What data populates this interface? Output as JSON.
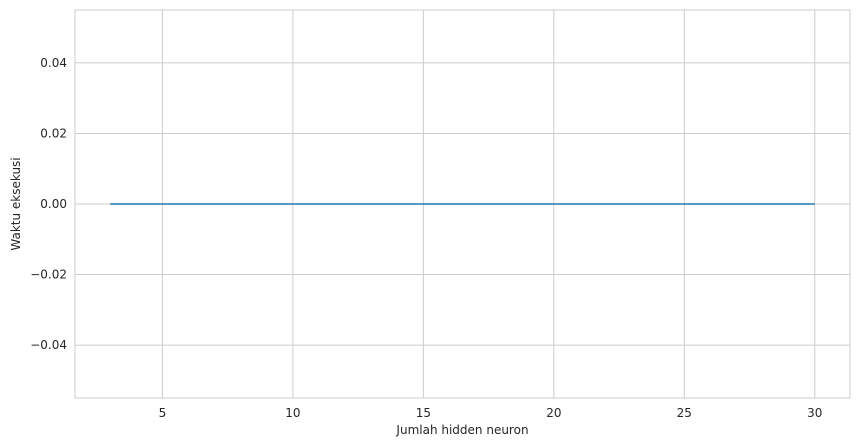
{
  "chart_data": {
    "type": "line",
    "title": "",
    "xlabel": "Jumlah hidden neuron",
    "ylabel": "Waktu eksekusi",
    "xlim": [
      1.65,
      31.35
    ],
    "ylim": [
      -0.055,
      0.055
    ],
    "xticks": [
      5,
      10,
      15,
      20,
      25,
      30
    ],
    "xtick_labels": [
      "5",
      "10",
      "15",
      "20",
      "25",
      "30"
    ],
    "yticks": [
      -0.04,
      -0.02,
      0.0,
      0.02,
      0.04
    ],
    "ytick_labels": [
      "−0.04",
      "−0.02",
      "0.00",
      "0.02",
      "0.04"
    ],
    "grid": true,
    "series": [
      {
        "color": "#1f77b4",
        "x": [
          3,
          4,
          5,
          6,
          7,
          8,
          9,
          10,
          11,
          12,
          13,
          14,
          15,
          16,
          17,
          18,
          19,
          20,
          21,
          22,
          23,
          24,
          25,
          26,
          27,
          28,
          29,
          30
        ],
        "y": [
          0,
          0,
          0,
          0,
          0,
          0,
          0,
          0,
          0,
          0,
          0,
          0,
          0,
          0,
          0,
          0,
          0,
          0,
          0,
          0,
          0,
          0,
          0,
          0,
          0,
          0,
          0,
          0
        ]
      }
    ]
  }
}
